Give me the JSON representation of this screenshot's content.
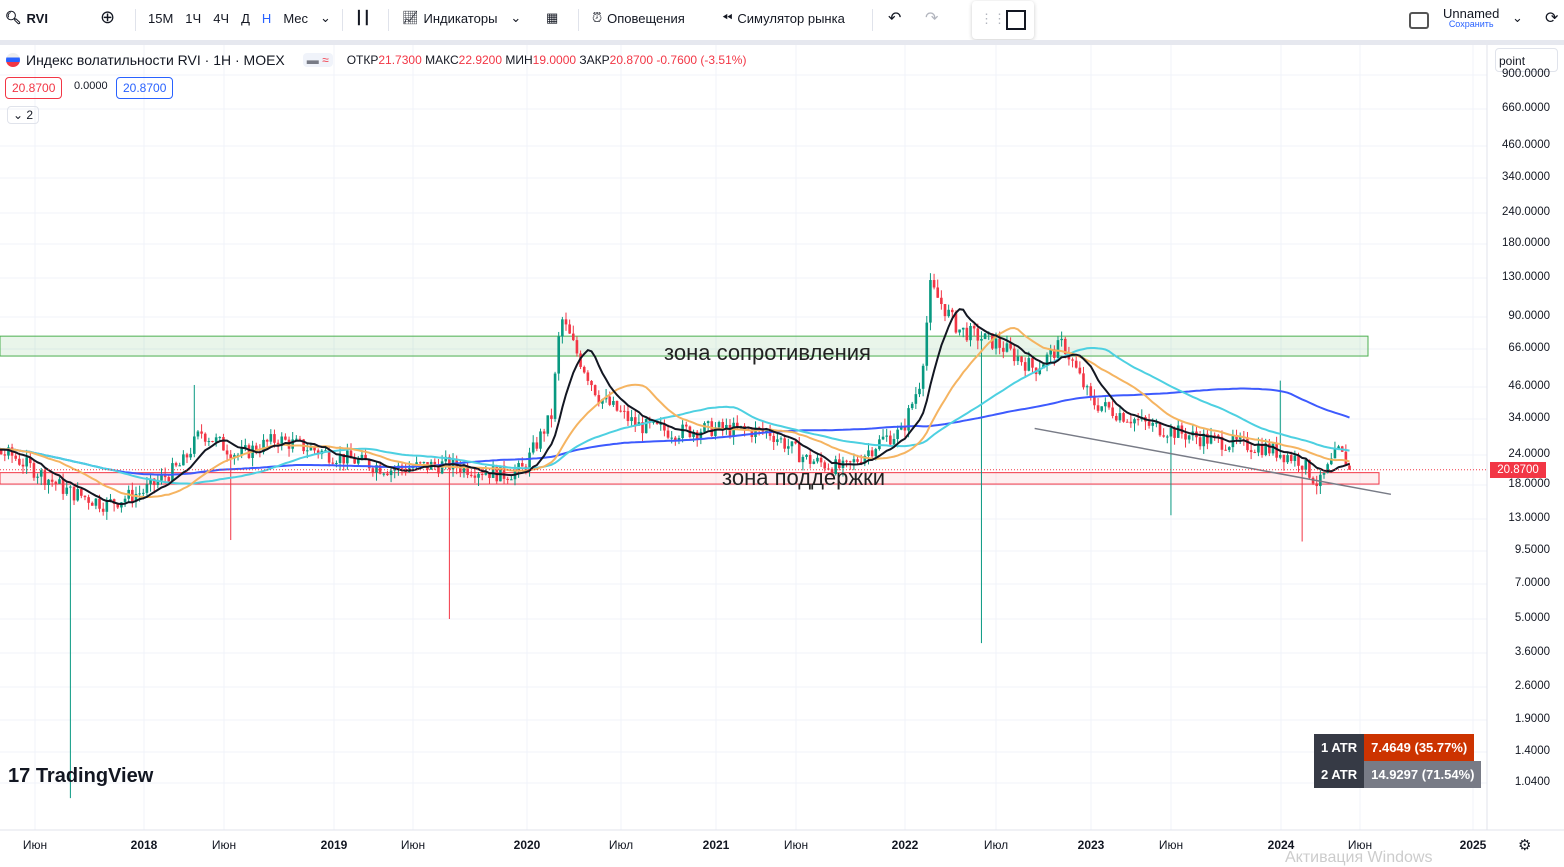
{
  "toolbar": {
    "symbol": "RVI",
    "intervals": [
      "15M",
      "1Ч",
      "4Ч",
      "Д",
      "Н",
      "Мес"
    ],
    "active_interval": "Н",
    "indicators": "Индикаторы",
    "alerts": "Оповещения",
    "replay": "Симулятор рынка",
    "layout_name": "Unnamed",
    "save": "Сохранить"
  },
  "legend": {
    "title": "Индекс волатильности RVI · 1Н · MOEX",
    "open_label": "ОТКР",
    "open": "21.7300",
    "high_label": "МАКС",
    "high": "22.9200",
    "low_label": "МИН",
    "low": "19.0000",
    "close_label": "ЗАКР",
    "close": "20.8700",
    "change": "-0.7600 (-3.51%)",
    "bid": "20.8700",
    "spread": "0.0000",
    "ask": "20.8700",
    "collapse": "2"
  },
  "point_input": "point",
  "annotations": {
    "resistance": "зона сопротивления",
    "support": "зона поддержки"
  },
  "atr": [
    {
      "label": "1 ATR",
      "value": "7.4649 (35.77%)"
    },
    {
      "label": "2 ATR",
      "value": "14.9297 (71.54%)"
    }
  ],
  "watermark": "TradingView",
  "os_watermark": "Активация Windows",
  "colors": {
    "up": "#089981",
    "down": "#f23645",
    "ma20": "#131722",
    "ma50": "#f5b461",
    "ma100": "#4dd0e1",
    "ma200": "#3d5afe",
    "resistance_zone": "#4caf50",
    "support_zone": "#f23645",
    "atr1": "#cc3300",
    "atr2": "#787b86"
  },
  "chart_data": {
    "type": "candlestick",
    "scale": "log",
    "current_price": "20.8700",
    "y_ticks": [
      "900.0000",
      "660.0000",
      "460.0000",
      "340.0000",
      "240.0000",
      "180.0000",
      "130.0000",
      "90.0000",
      "66.0000",
      "46.0000",
      "34.0000",
      "24.0000",
      "18.0000",
      "13.0000",
      "9.5000",
      "7.0000",
      "5.0000",
      "3.6000",
      "2.6000",
      "1.9000",
      "1.4000",
      "1.0400"
    ],
    "x_ticks": [
      "Июн",
      "2018",
      "Июн",
      "2019",
      "Июн",
      "2020",
      "Июл",
      "2021",
      "Июн",
      "2022",
      "Июл",
      "2023",
      "Июн",
      "2024",
      "Июн",
      "2025"
    ],
    "close_path": [
      [
        2016.9,
        27
      ],
      [
        2017.3,
        24
      ],
      [
        2017.6,
        17
      ],
      [
        2017.8,
        15
      ],
      [
        2018.0,
        17
      ],
      [
        2018.2,
        22
      ],
      [
        2018.3,
        30
      ],
      [
        2018.5,
        24
      ],
      [
        2018.7,
        28
      ],
      [
        2019.0,
        24
      ],
      [
        2019.3,
        21
      ],
      [
        2019.6,
        22
      ],
      [
        2019.9,
        20
      ],
      [
        2020.0,
        21
      ],
      [
        2020.15,
        35
      ],
      [
        2020.2,
        90
      ],
      [
        2020.3,
        60
      ],
      [
        2020.4,
        42
      ],
      [
        2020.6,
        32
      ],
      [
        2020.8,
        30
      ],
      [
        2021.0,
        31
      ],
      [
        2021.3,
        30
      ],
      [
        2021.5,
        23
      ],
      [
        2021.7,
        21
      ],
      [
        2021.9,
        28
      ],
      [
        2022.0,
        30
      ],
      [
        2022.1,
        50
      ],
      [
        2022.15,
        120
      ],
      [
        2022.3,
        80
      ],
      [
        2022.5,
        70
      ],
      [
        2022.7,
        55
      ],
      [
        2022.85,
        70
      ],
      [
        2023.0,
        40
      ],
      [
        2023.3,
        32
      ],
      [
        2023.6,
        28
      ],
      [
        2023.9,
        26
      ],
      [
        2024.1,
        23
      ],
      [
        2024.2,
        18
      ],
      [
        2024.3,
        25
      ],
      [
        2024.38,
        20.87
      ]
    ],
    "wick_extremes": [
      [
        2017.62,
        0.9
      ],
      [
        2018.45,
        10.65
      ],
      [
        2019.62,
        5.0
      ],
      [
        2022.42,
        3.97
      ],
      [
        2023.42,
        13.5
      ],
      [
        2024.11,
        10.5
      ],
      [
        2018.27,
        47
      ],
      [
        2023.99,
        49
      ]
    ],
    "zones": [
      {
        "name": "зона сопротивления",
        "from": 62,
        "to": 75
      },
      {
        "name": "зона поддержки",
        "from": 18.2,
        "to": 20.3
      }
    ],
    "trendline": [
      [
        2022.7,
        31
      ],
      [
        2024.58,
        16.5
      ]
    ]
  }
}
